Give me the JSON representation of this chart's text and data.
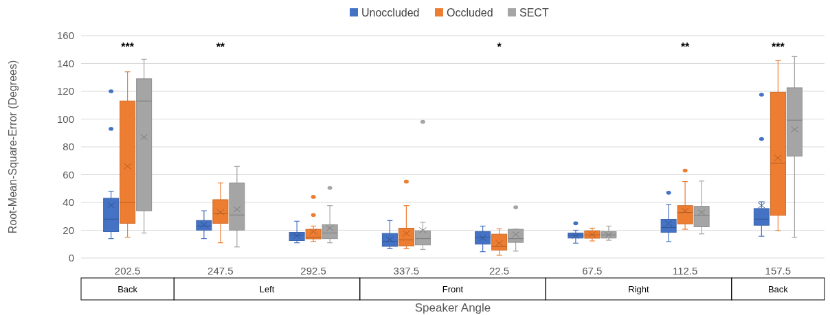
{
  "chart_data": {
    "type": "box",
    "ylabel": "Root-Mean-Square-Error (Degrees)",
    "xlabel": "Speaker Angle",
    "categories": [
      "202.5",
      "247.5",
      "292.5",
      "337.5",
      "22.5",
      "67.5",
      "112.5",
      "157.5"
    ],
    "ylim": [
      0,
      160
    ],
    "yticks": [
      0,
      20,
      40,
      60,
      80,
      100,
      120,
      140,
      160
    ],
    "grid": "y",
    "legend": "top",
    "series": [
      {
        "name": "Unoccluded",
        "color": "#4472c4",
        "boxes": [
          {
            "low": 14,
            "q1": 19,
            "median": 28,
            "q3": 43,
            "high": 48,
            "mean": 38,
            "outliers": [
              93,
              120
            ]
          },
          {
            "low": 14,
            "q1": 20,
            "median": 23,
            "q3": 27,
            "high": 34,
            "mean": 24
          },
          {
            "low": 11,
            "q1": 12.6,
            "median": 16.5,
            "q3": 18.5,
            "high": 26.5,
            "mean": 16
          },
          {
            "low": 6.7,
            "q1": 8.4,
            "median": 12,
            "q3": 17.7,
            "high": 27,
            "mean": 13.4
          },
          {
            "low": 4.6,
            "q1": 10,
            "median": 15,
            "q3": 19,
            "high": 23,
            "mean": 14.4
          },
          {
            "low": 10.7,
            "q1": 14.4,
            "median": 16.4,
            "q3": 18,
            "high": 20,
            "mean": 16,
            "outliers": [
              25
            ]
          },
          {
            "low": 11.8,
            "q1": 18.5,
            "median": 22,
            "q3": 27.9,
            "high": 38.5,
            "mean": 24.8,
            "outliers": [
              47
            ]
          },
          {
            "low": 15.7,
            "q1": 23.6,
            "median": 28,
            "q3": 35.6,
            "high": 40.5,
            "mean": 37.9,
            "outliers": [
              85.7,
              117.5
            ]
          }
        ]
      },
      {
        "name": "Occluded",
        "color": "#ed7d31",
        "boxes": [
          {
            "low": 15,
            "q1": 25,
            "median": 40,
            "q3": 113,
            "high": 134,
            "mean": 66
          },
          {
            "low": 11,
            "q1": 25,
            "median": 32,
            "q3": 42,
            "high": 54,
            "mean": 33
          },
          {
            "low": 12,
            "q1": 13.8,
            "median": 15,
            "q3": 20.7,
            "high": 23,
            "mean": 19,
            "outliers": [
              31,
              44
            ]
          },
          {
            "low": 6.7,
            "q1": 8.7,
            "median": 13,
            "q3": 21.5,
            "high": 37.7,
            "mean": 17.7,
            "outliers": [
              55
            ]
          },
          {
            "low": 2,
            "q1": 5.7,
            "median": 8.2,
            "q3": 17.2,
            "high": 21,
            "mean": 10.7
          },
          {
            "low": 12.3,
            "q1": 14.3,
            "median": 16.7,
            "q3": 19.5,
            "high": 21.5,
            "mean": 17
          },
          {
            "low": 20.7,
            "q1": 24.6,
            "median": 32.8,
            "q3": 37.7,
            "high": 55,
            "mean": 34,
            "outliers": [
              63
            ]
          },
          {
            "low": 19.8,
            "q1": 30.7,
            "median": 68.2,
            "q3": 119.3,
            "high": 142,
            "mean": 72
          }
        ]
      },
      {
        "name": "SECT",
        "color": "#a5a5a5",
        "boxes": [
          {
            "low": 18,
            "q1": 34,
            "median": 113,
            "q3": 129,
            "high": 143,
            "mean": 87
          },
          {
            "low": 8,
            "q1": 20,
            "median": 31,
            "q3": 54,
            "high": 66,
            "mean": 35
          },
          {
            "low": 11,
            "q1": 14,
            "median": 18,
            "q3": 24,
            "high": 37.7,
            "mean": 21.5,
            "outliers": [
              50.5
            ]
          },
          {
            "low": 6.2,
            "q1": 9.5,
            "median": 14,
            "q3": 19.5,
            "high": 25.7,
            "mean": 20,
            "outliers": [
              98
            ]
          },
          {
            "low": 5,
            "q1": 11.3,
            "median": 14,
            "q3": 20.7,
            "high": 20.8,
            "mean": 17,
            "outliers": [
              36.5
            ]
          },
          {
            "low": 12.8,
            "q1": 14.4,
            "median": 16.7,
            "q3": 19,
            "high": 23,
            "mean": 16.7
          },
          {
            "low": 17.4,
            "q1": 22.5,
            "median": 30.8,
            "q3": 37.2,
            "high": 55.4,
            "mean": 32.8
          },
          {
            "low": 14.8,
            "q1": 73.3,
            "median": 99.2,
            "q3": 122.5,
            "high": 145,
            "mean": 92.6
          }
        ]
      }
    ],
    "annotations": [
      "***",
      "**",
      "*",
      "**",
      "***",
      "Back",
      "Left",
      "Front",
      "Right",
      "Back"
    ]
  }
}
